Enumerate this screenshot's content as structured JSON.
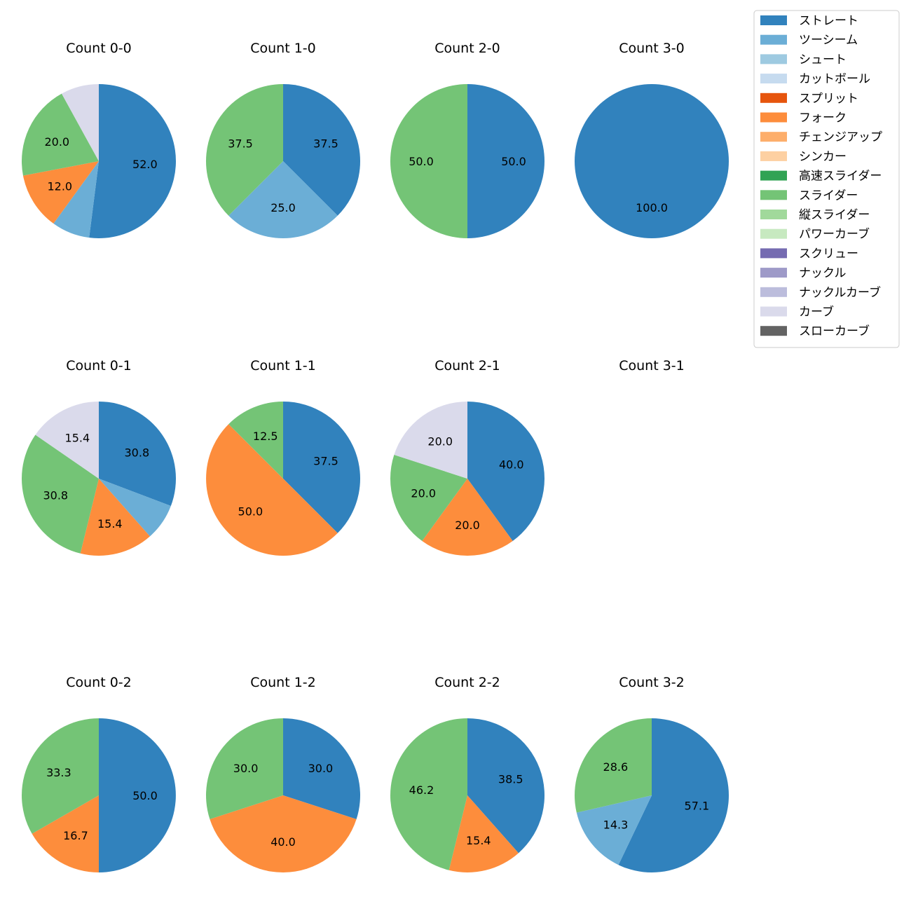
{
  "chart_data": {
    "type": "pie",
    "legend_placement": "top-right",
    "legend": [
      {
        "name": "ストレート",
        "color": "#3182bd"
      },
      {
        "name": "ツーシーム",
        "color": "#6baed6"
      },
      {
        "name": "シュート",
        "color": "#9ecae1"
      },
      {
        "name": "カットボール",
        "color": "#c6dbef"
      },
      {
        "name": "スプリット",
        "color": "#e6550d"
      },
      {
        "name": "フォーク",
        "color": "#fd8d3c"
      },
      {
        "name": "チェンジアップ",
        "color": "#fdae6b"
      },
      {
        "name": "シンカー",
        "color": "#fdd0a2"
      },
      {
        "name": "高速スライダー",
        "color": "#31a354"
      },
      {
        "name": "スライダー",
        "color": "#74c476"
      },
      {
        "name": "縦スライダー",
        "color": "#a1d99b"
      },
      {
        "name": "パワーカーブ",
        "color": "#c7e9c0"
      },
      {
        "name": "スクリュー",
        "color": "#756bb1"
      },
      {
        "name": "ナックル",
        "color": "#9e9ac8"
      },
      {
        "name": "ナックルカーブ",
        "color": "#bcbddc"
      },
      {
        "name": "カーブ",
        "color": "#dadaeb"
      },
      {
        "name": "スローカーブ",
        "color": "#636363"
      }
    ],
    "pies": [
      {
        "title": "Count 0-0",
        "slices": [
          {
            "name": "ストレート",
            "value": 52.0,
            "label": "52.0"
          },
          {
            "name": "ツーシーム",
            "value": 8.0,
            "label": ""
          },
          {
            "name": "フォーク",
            "value": 12.0,
            "label": "12.0"
          },
          {
            "name": "スライダー",
            "value": 20.0,
            "label": "20.0"
          },
          {
            "name": "カーブ",
            "value": 8.0,
            "label": ""
          }
        ]
      },
      {
        "title": "Count 1-0",
        "slices": [
          {
            "name": "ストレート",
            "value": 37.5,
            "label": "37.5"
          },
          {
            "name": "ツーシーム",
            "value": 25.0,
            "label": "25.0"
          },
          {
            "name": "スライダー",
            "value": 37.5,
            "label": "37.5"
          }
        ]
      },
      {
        "title": "Count 2-0",
        "slices": [
          {
            "name": "ストレート",
            "value": 50.0,
            "label": "50.0"
          },
          {
            "name": "スライダー",
            "value": 50.0,
            "label": "50.0"
          }
        ]
      },
      {
        "title": "Count 3-0",
        "slices": [
          {
            "name": "ストレート",
            "value": 100.0,
            "label": "100.0"
          }
        ]
      },
      {
        "title": "Count 0-1",
        "slices": [
          {
            "name": "ストレート",
            "value": 30.8,
            "label": "30.8"
          },
          {
            "name": "ツーシーム",
            "value": 7.7,
            "label": ""
          },
          {
            "name": "フォーク",
            "value": 15.4,
            "label": "15.4"
          },
          {
            "name": "スライダー",
            "value": 30.8,
            "label": "30.8"
          },
          {
            "name": "カーブ",
            "value": 15.4,
            "label": "15.4"
          }
        ]
      },
      {
        "title": "Count 1-1",
        "slices": [
          {
            "name": "ストレート",
            "value": 37.5,
            "label": "37.5"
          },
          {
            "name": "フォーク",
            "value": 50.0,
            "label": "50.0"
          },
          {
            "name": "スライダー",
            "value": 12.5,
            "label": "12.5"
          }
        ]
      },
      {
        "title": "Count 2-1",
        "slices": [
          {
            "name": "ストレート",
            "value": 40.0,
            "label": "40.0"
          },
          {
            "name": "フォーク",
            "value": 20.0,
            "label": "20.0"
          },
          {
            "name": "スライダー",
            "value": 20.0,
            "label": "20.0"
          },
          {
            "name": "カーブ",
            "value": 20.0,
            "label": "20.0"
          }
        ]
      },
      {
        "title": "Count 3-1",
        "slices": []
      },
      {
        "title": "Count 0-2",
        "slices": [
          {
            "name": "ストレート",
            "value": 50.0,
            "label": "50.0"
          },
          {
            "name": "フォーク",
            "value": 16.7,
            "label": "16.7"
          },
          {
            "name": "スライダー",
            "value": 33.3,
            "label": "33.3"
          }
        ]
      },
      {
        "title": "Count 1-2",
        "slices": [
          {
            "name": "ストレート",
            "value": 30.0,
            "label": "30.0"
          },
          {
            "name": "フォーク",
            "value": 40.0,
            "label": "40.0"
          },
          {
            "name": "スライダー",
            "value": 30.0,
            "label": "30.0"
          }
        ]
      },
      {
        "title": "Count 2-2",
        "slices": [
          {
            "name": "ストレート",
            "value": 38.5,
            "label": "38.5"
          },
          {
            "name": "フォーク",
            "value": 15.4,
            "label": "15.4"
          },
          {
            "name": "スライダー",
            "value": 46.2,
            "label": "46.2"
          }
        ]
      },
      {
        "title": "Count 3-2",
        "slices": [
          {
            "name": "ストレート",
            "value": 57.1,
            "label": "57.1"
          },
          {
            "name": "ツーシーム",
            "value": 14.3,
            "label": "14.3"
          },
          {
            "name": "スライダー",
            "value": 28.6,
            "label": "28.6"
          }
        ]
      }
    ]
  }
}
